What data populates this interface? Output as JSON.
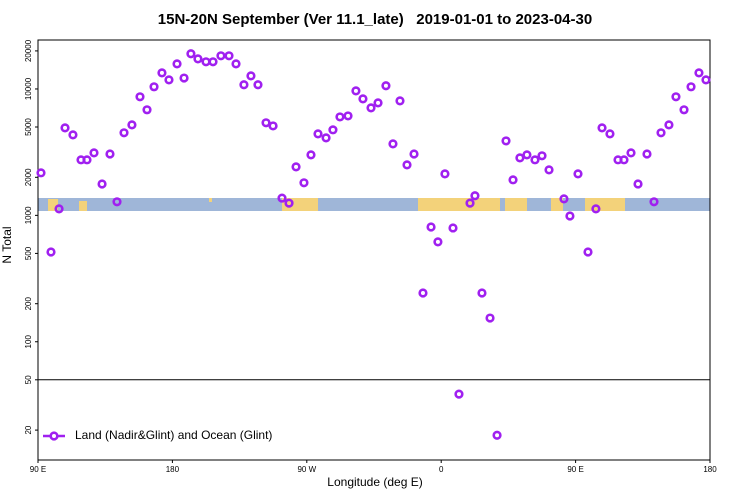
{
  "chart_data": {
    "type": "scatter",
    "title": "15N-20N September (Ver 11.1_late)   2019-01-01 to 2023-04-30",
    "x_label": "Longitude (deg E)",
    "y_label": "N Total",
    "log_y": true,
    "legend": "bottom-left",
    "reference_line": 50,
    "xlim": [
      90,
      540
    ],
    "xticks": [
      {
        "value": 90,
        "label": "90 E"
      },
      180,
      {
        "value": 270,
        "label": "90 W"
      },
      {
        "value": 360,
        "label": "0"
      },
      {
        "value": 450,
        "label": "90 E"
      },
      {
        "value": 540,
        "label": "180"
      }
    ],
    "ylim": [
      11.6,
      24400
    ],
    "yticks": [
      20,
      50,
      100,
      200,
      500,
      1000,
      2000,
      5000,
      10000,
      20000
    ],
    "series": [
      {
        "name": "Land (Nadir&Glint) and Ocean (Glint)",
        "color": "#a020f0",
        "x": [
          92.0,
          98.7,
          104.1,
          108.1,
          113.4,
          118.8,
          122.8,
          127.5,
          132.9,
          138.2,
          142.9,
          147.6,
          152.9,
          158.3,
          163.0,
          167.7,
          173.0,
          177.7,
          183.1,
          187.8,
          192.4,
          197.1,
          202.5,
          207.2,
          212.5,
          217.9,
          222.6,
          227.9,
          232.6,
          237.3,
          242.7,
          247.4,
          253.4,
          258.1,
          262.8,
          268.1,
          272.8,
          277.5,
          282.9,
          287.5,
          292.2,
          297.6,
          302.9,
          307.6,
          313.0,
          317.7,
          323.0,
          327.7,
          332.4,
          337.1,
          341.8,
          347.8,
          353.2,
          357.8,
          362.5,
          367.9,
          371.9,
          379.3,
          382.6,
          387.3,
          392.7,
          397.4,
          403.4,
          408.1,
          412.7,
          417.4,
          422.8,
          427.5,
          432.2,
          442.2,
          446.2,
          451.6,
          458.3,
          463.6,
          467.7,
          473.0,
          478.4,
          482.4,
          487.1,
          491.8,
          497.8,
          502.5,
          507.2,
          512.5,
          517.2,
          522.6,
          527.3,
          532.6,
          537.3
        ],
        "values": [
          2170,
          513,
          1125,
          4920,
          4330,
          2750,
          2750,
          3120,
          1770,
          3060,
          1280,
          4500,
          5200,
          8670,
          6840,
          10400,
          13400,
          11800,
          15800,
          12200,
          19000,
          17300,
          16400,
          16400,
          18300,
          18300,
          15800,
          10800,
          12700,
          10800,
          5400,
          5100,
          1370,
          1250,
          2420,
          1810,
          3010,
          4410,
          4100,
          4750,
          6010,
          6120,
          9660,
          8350,
          7090,
          7760,
          10600,
          3680,
          8050,
          2510,
          3060,
          243,
          809,
          617,
          2130,
          795,
          38.5,
          1250,
          1430,
          243,
          154,
          18.2,
          3880,
          1910,
          2850,
          3010,
          2750,
          2960,
          2290,
          1350,
          989,
          2130,
          513,
          1125,
          4920,
          4410,
          2750,
          2750,
          3120,
          1770,
          3060,
          1280,
          4500,
          5200,
          8670,
          6840,
          10400,
          13400,
          11800
        ]
      }
    ]
  }
}
